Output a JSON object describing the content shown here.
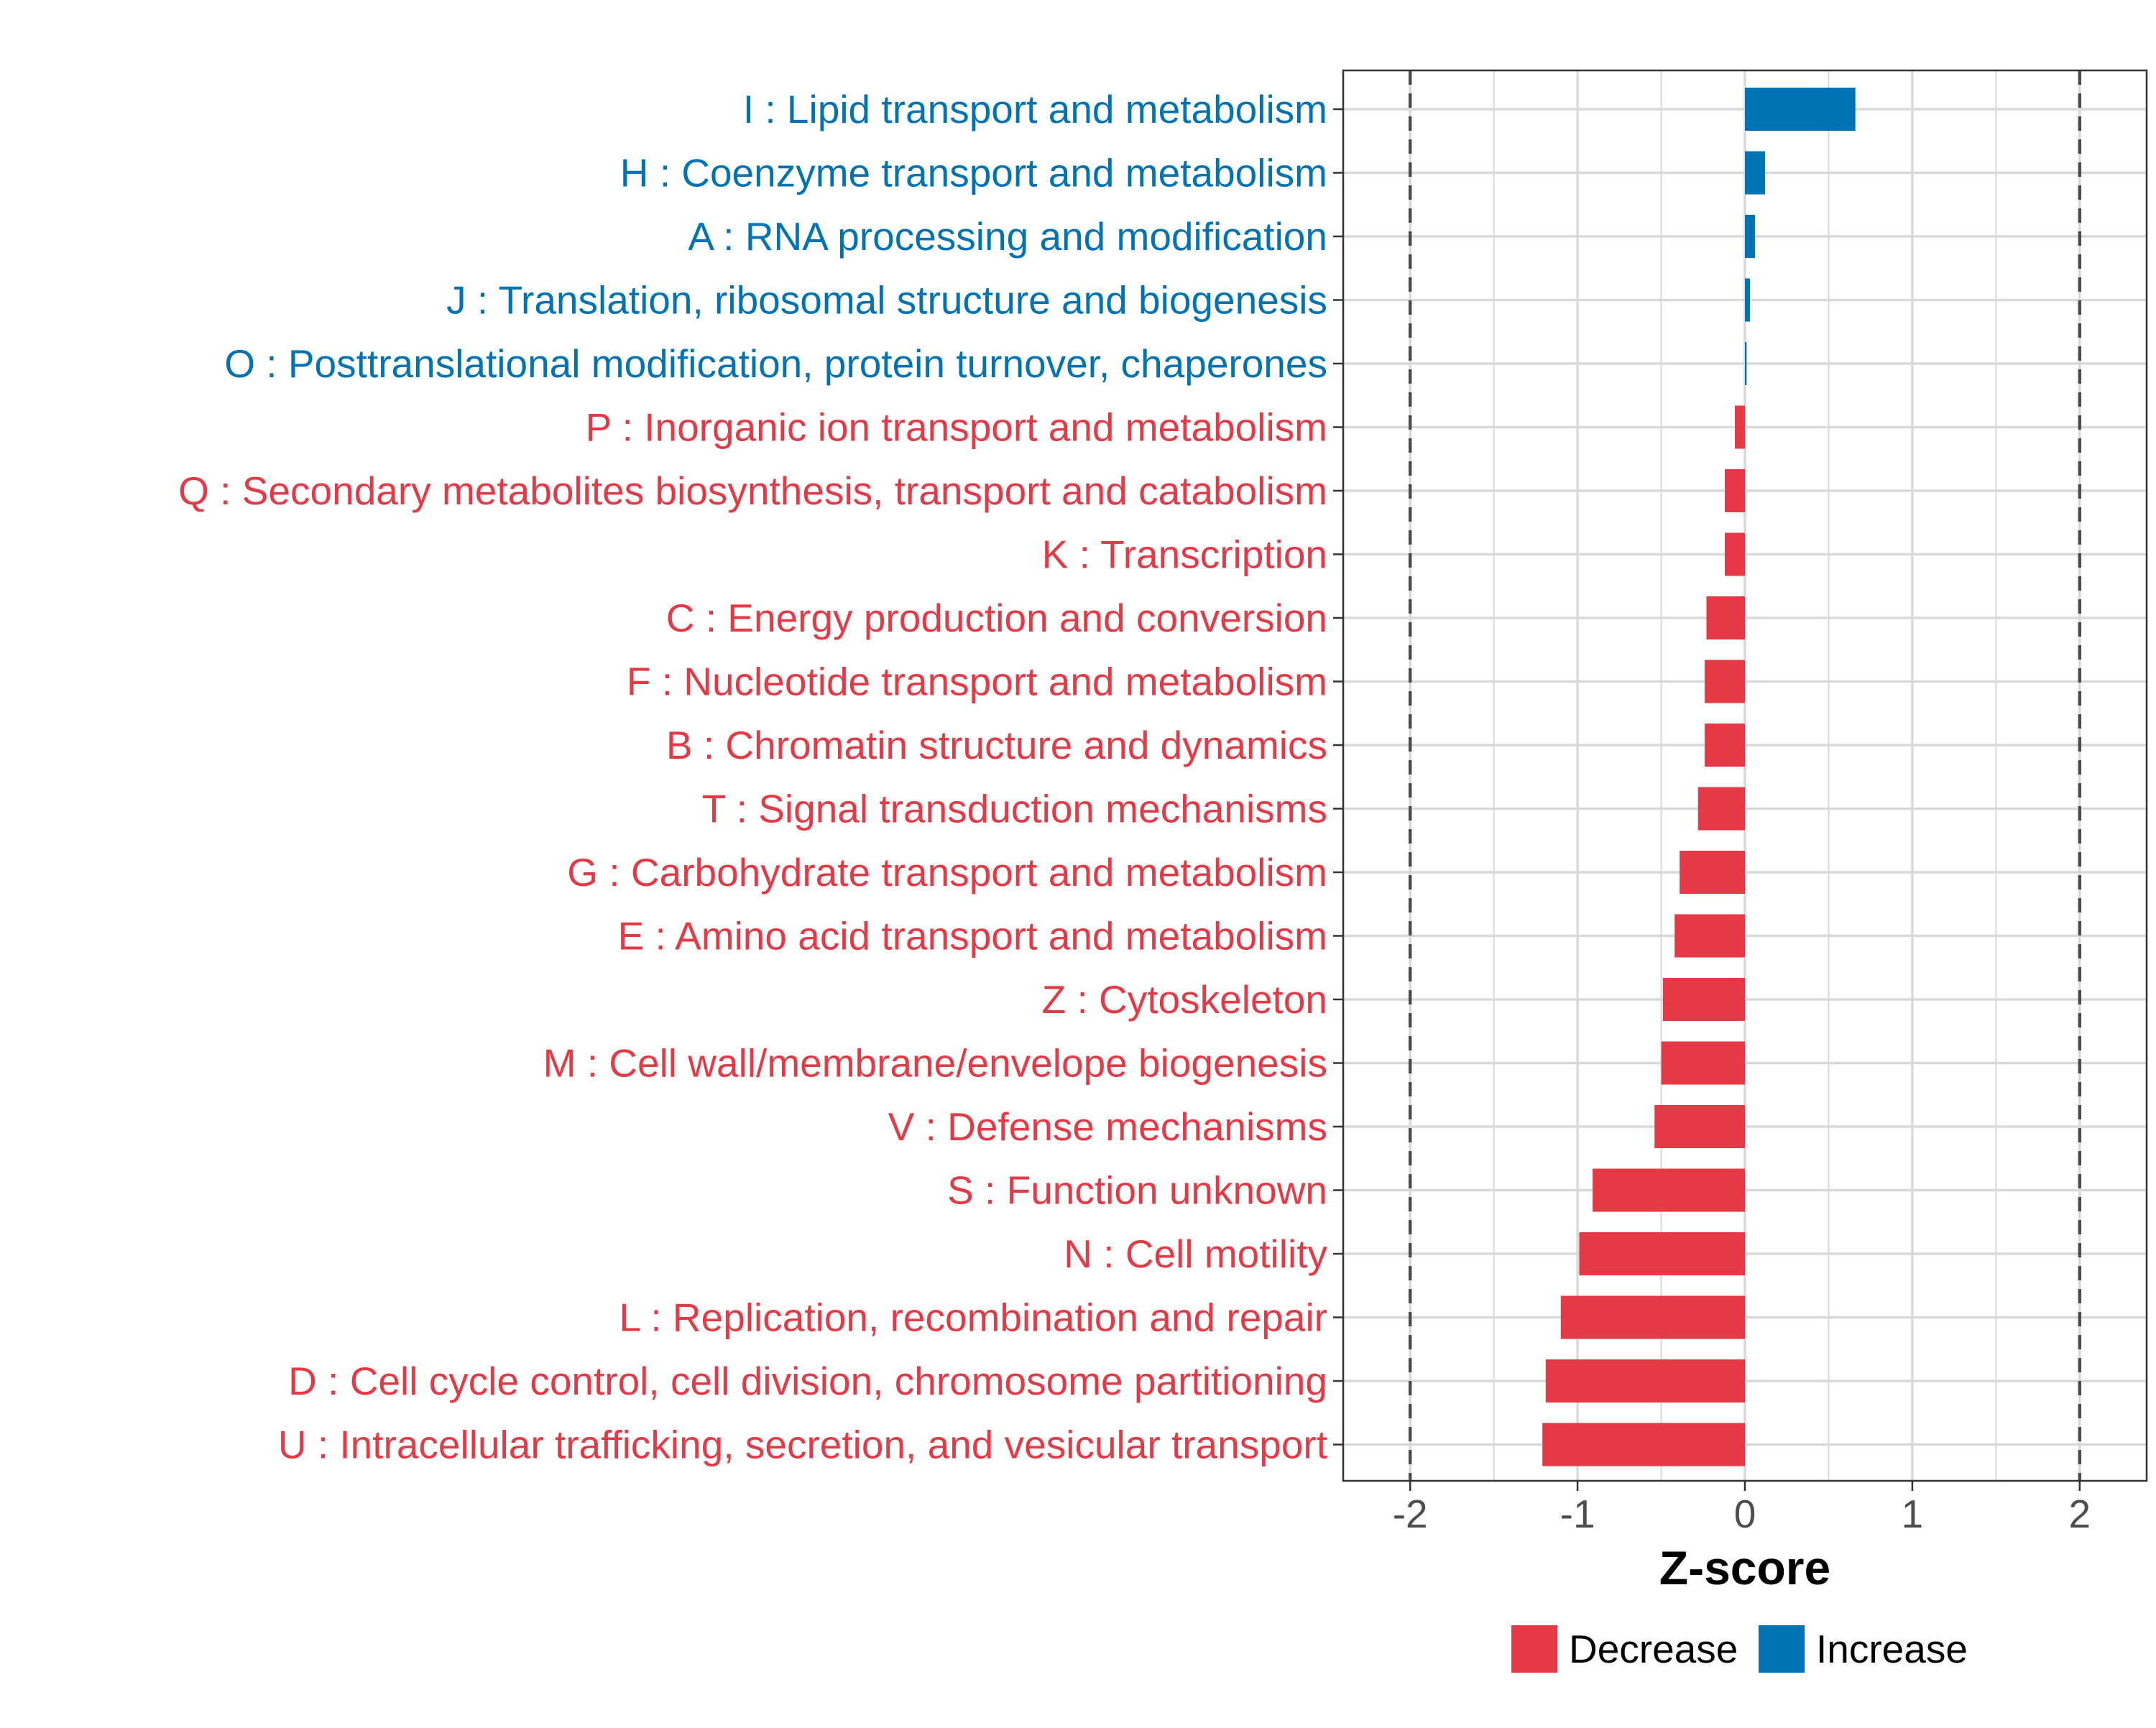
{
  "chart_data": {
    "type": "bar",
    "orientation": "horizontal",
    "title": "",
    "xlabel": "Z-score",
    "ylabel": "",
    "xlim": [
      -2.4,
      2.4
    ],
    "xticks": [
      -2,
      -1,
      0,
      1,
      2
    ],
    "xtick_labels": [
      "-2",
      "-1",
      "0",
      "1",
      "2"
    ],
    "grid": true,
    "reference_lines": [
      -2,
      2
    ],
    "categories": [
      "I : Lipid transport and metabolism",
      "H : Coenzyme transport and metabolism",
      "A : RNA processing and modification",
      "J : Translation, ribosomal structure and biogenesis",
      "O : Posttranslational modification, protein turnover, chaperones",
      "P : Inorganic ion transport and metabolism",
      "Q : Secondary metabolites biosynthesis, transport and catabolism",
      "K : Transcription",
      "C : Energy production and conversion",
      "F : Nucleotide transport and metabolism",
      "B : Chromatin structure and dynamics",
      "T : Signal transduction mechanisms",
      "G : Carbohydrate transport and metabolism",
      "E : Amino acid transport and metabolism",
      "Z : Cytoskeleton",
      "M : Cell wall/membrane/envelope biogenesis",
      "V : Defense mechanisms",
      "S : Function unknown",
      "N : Cell motility",
      "L : Replication, recombination and repair",
      "D : Cell cycle control, cell division, chromosome partitioning",
      "U : Intracellular trafficking, secretion, and vesicular transport"
    ],
    "values": [
      0.66,
      0.12,
      0.06,
      0.03,
      0.01,
      -0.06,
      -0.12,
      -0.12,
      -0.23,
      -0.24,
      -0.24,
      -0.28,
      -0.39,
      -0.42,
      -0.49,
      -0.5,
      -0.54,
      -0.91,
      -0.99,
      -1.1,
      -1.19,
      -1.21
    ],
    "legend": {
      "position": "bottom",
      "entries": [
        {
          "label": "Decrease",
          "color": "#e63946"
        },
        {
          "label": "Increase",
          "color": "#0073b5"
        }
      ]
    },
    "colors": {
      "increase": "#0073b5",
      "decrease": "#e63946",
      "grid": "#d9d9d9",
      "axis_text": "#4d4d4d",
      "reference_line": "#4d4d4d"
    }
  }
}
